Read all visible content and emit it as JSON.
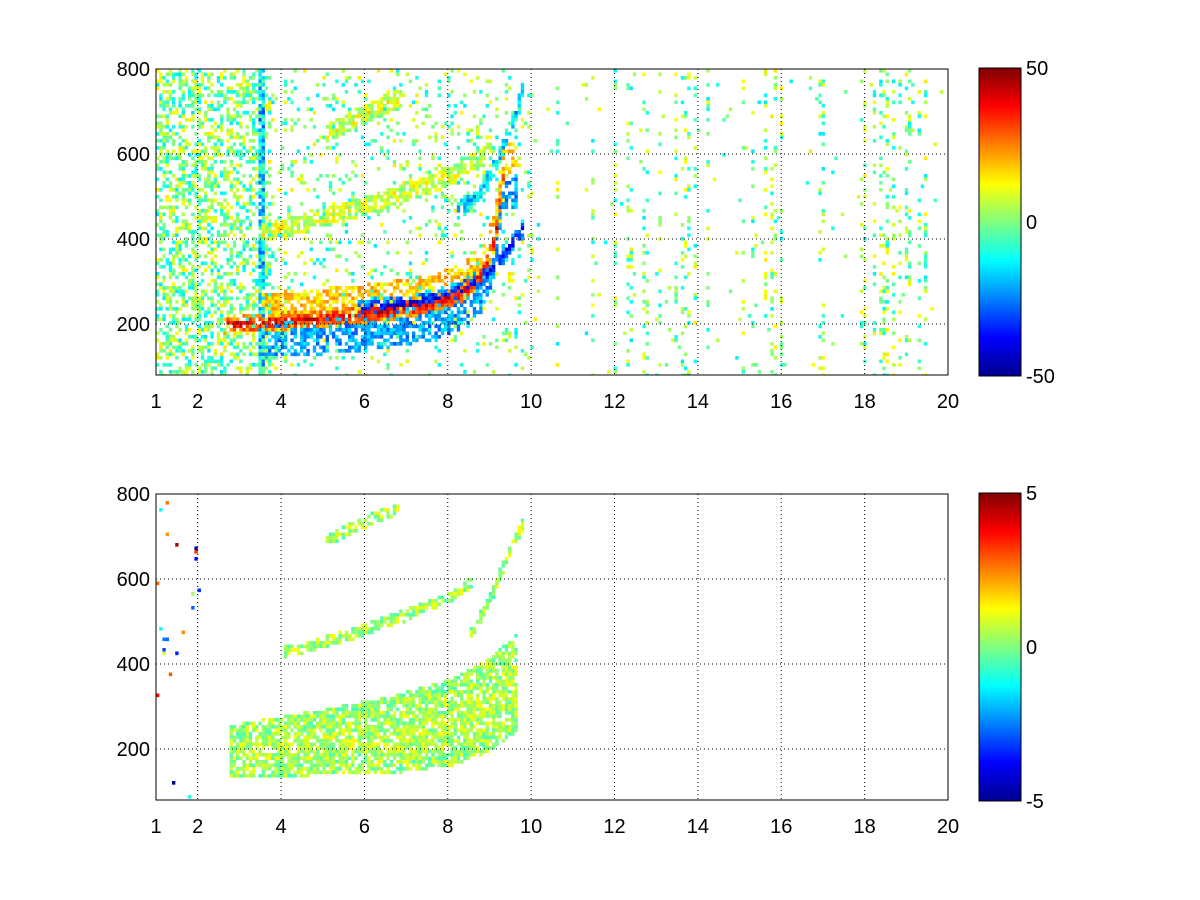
{
  "chart_data": [
    {
      "type": "heatmap",
      "title": "",
      "xlabel": "",
      "ylabel": "",
      "xlim": [
        1,
        20
      ],
      "ylim": [
        80,
        800
      ],
      "xticks": [
        1,
        2,
        4,
        6,
        8,
        10,
        12,
        14,
        16,
        18,
        20
      ],
      "xtick_labels": [
        "1",
        "2",
        "4",
        "6",
        "8",
        "10",
        "12",
        "14",
        "16",
        "18",
        "20"
      ],
      "yticks": [
        200,
        400,
        600,
        800
      ],
      "ytick_labels": [
        "200",
        "400",
        "600",
        "800"
      ],
      "grid": true,
      "colormap": "jet",
      "clim": [
        -50,
        50
      ],
      "colorbar_ticks": [
        50,
        0,
        -50
      ],
      "colorbar_labels": [
        "50",
        "0",
        "-50"
      ],
      "features": [
        {
          "kind": "ridge",
          "value": 40,
          "points": [
            [
              2.6,
              200
            ],
            [
              3.5,
              207
            ],
            [
              4.5,
              215
            ],
            [
              5.5,
              222
            ],
            [
              6.5,
              233
            ],
            [
              7.5,
              250
            ],
            [
              8.3,
              275
            ],
            [
              8.8,
              320
            ],
            [
              9.1,
              400
            ],
            [
              9.3,
              560
            ]
          ]
        },
        {
          "kind": "ridge",
          "value": -40,
          "points": [
            [
              5.8,
              240
            ],
            [
              6.5,
              247
            ],
            [
              7.2,
              255
            ],
            [
              7.8,
              268
            ],
            [
              8.5,
              295
            ],
            [
              9.0,
              330
            ],
            [
              9.4,
              380
            ],
            [
              9.8,
              430
            ]
          ]
        },
        {
          "kind": "ridge",
          "value": 10,
          "points": [
            [
              3.5,
              420
            ],
            [
              4.5,
              440
            ],
            [
              5.5,
              468
            ],
            [
              6.5,
              498
            ],
            [
              7.5,
              530
            ],
            [
              8.3,
              565
            ],
            [
              8.8,
              600
            ],
            [
              9.0,
              630
            ]
          ]
        },
        {
          "kind": "ridge",
          "value": -20,
          "points": [
            [
              8.2,
              470
            ],
            [
              8.8,
              520
            ],
            [
              9.2,
              600
            ],
            [
              9.6,
              700
            ],
            [
              9.8,
              760
            ]
          ]
        },
        {
          "kind": "ridge",
          "value": 10,
          "points": [
            [
              5.0,
              650
            ],
            [
              5.8,
              690
            ],
            [
              6.5,
              720
            ],
            [
              6.9,
              740
            ]
          ]
        }
      ]
    },
    {
      "type": "heatmap",
      "title": "",
      "xlabel": "",
      "ylabel": "",
      "xlim": [
        1,
        20
      ],
      "ylim": [
        80,
        800
      ],
      "xticks": [
        1,
        2,
        4,
        6,
        8,
        10,
        12,
        14,
        16,
        18,
        20
      ],
      "xtick_labels": [
        "1",
        "2",
        "4",
        "6",
        "8",
        "10",
        "12",
        "14",
        "16",
        "18",
        "20"
      ],
      "yticks": [
        200,
        400,
        600,
        800
      ],
      "ytick_labels": [
        "200",
        "400",
        "600",
        "800"
      ],
      "grid": true,
      "colormap": "jet",
      "clim": [
        -5,
        5
      ],
      "colorbar_ticks": [
        5,
        0,
        -5
      ],
      "colorbar_labels": [
        "5",
        "0",
        "-5"
      ],
      "features": [
        {
          "kind": "band",
          "value": 0.5,
          "points": [
            [
              2.7,
              200
            ],
            [
              4.5,
              215
            ],
            [
              6.5,
              235
            ],
            [
              8.0,
              265
            ],
            [
              9.0,
              310
            ],
            [
              9.6,
              360
            ]
          ]
        },
        {
          "kind": "ridge",
          "value": 0.5,
          "points": [
            [
              4.0,
              430
            ],
            [
              5.5,
              470
            ],
            [
              7.0,
              520
            ],
            [
              8.0,
              560
            ],
            [
              8.6,
              600
            ]
          ]
        },
        {
          "kind": "ridge",
          "value": 0.5,
          "points": [
            [
              8.5,
              470
            ],
            [
              9.0,
              560
            ],
            [
              9.4,
              660
            ],
            [
              9.8,
              740
            ]
          ]
        },
        {
          "kind": "ridge",
          "value": 0.5,
          "points": [
            [
              5.0,
              690
            ],
            [
              6.0,
              740
            ],
            [
              6.8,
              770
            ]
          ]
        }
      ]
    }
  ]
}
